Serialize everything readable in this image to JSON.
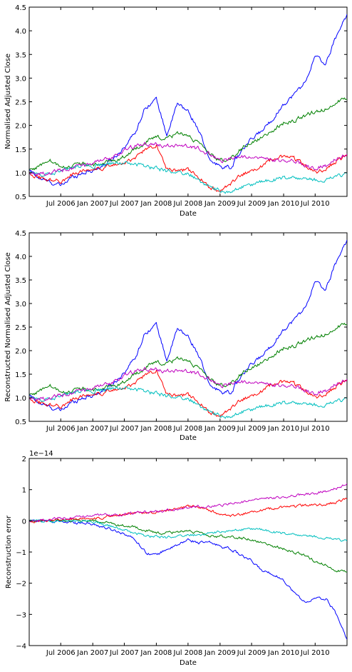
{
  "x_ticks": [
    "Jul 2006",
    "Jan 2007",
    "Jul 2007",
    "Jan 2008",
    "Jul 2008",
    "Jan 2009",
    "Jul 2009",
    "Jan 2010",
    "Jul 2010"
  ],
  "series_colors": [
    "#0000ff",
    "#008000",
    "#ff0000",
    "#00bfbf",
    "#bf00bf"
  ],
  "chart_data": [
    {
      "type": "line",
      "title": "",
      "xlabel": "Date",
      "ylabel": "Normalised Adjusted Close",
      "xlim": [
        "2006-01-01",
        "2010-12-31"
      ],
      "ylim": [
        0.5,
        4.5
      ],
      "yticks": [
        "0.5",
        "1.0",
        "1.5",
        "2.0",
        "2.5",
        "3.0",
        "3.5",
        "4.0",
        "4.5"
      ],
      "grid": false,
      "x": [
        "2006-01-03",
        "2006-03-01",
        "2006-05-01",
        "2006-07-01",
        "2006-09-01",
        "2006-11-01",
        "2007-01-01",
        "2007-03-01",
        "2007-05-01",
        "2007-07-01",
        "2007-09-01",
        "2007-11-01",
        "2008-01-01",
        "2008-03-01",
        "2008-05-01",
        "2008-07-01",
        "2008-09-01",
        "2008-11-01",
        "2009-01-01",
        "2009-03-01",
        "2009-05-01",
        "2009-07-01",
        "2009-09-01",
        "2009-11-01",
        "2010-01-01",
        "2010-03-01",
        "2010-05-01",
        "2010-07-01",
        "2010-09-01",
        "2010-11-01",
        "2010-12-31"
      ],
      "series": [
        {
          "values": [
            1.05,
            0.88,
            0.8,
            0.72,
            0.9,
            1.0,
            1.05,
            1.15,
            1.3,
            1.55,
            1.85,
            2.4,
            2.55,
            1.8,
            2.45,
            2.3,
            1.9,
            1.25,
            1.15,
            1.1,
            1.45,
            1.7,
            1.9,
            2.15,
            2.45,
            2.65,
            2.9,
            3.45,
            3.3,
            3.9,
            4.35
          ]
        },
        {
          "values": [
            1.05,
            1.15,
            1.25,
            1.1,
            1.15,
            1.2,
            1.15,
            1.2,
            1.25,
            1.35,
            1.5,
            1.65,
            1.75,
            1.7,
            1.85,
            1.8,
            1.6,
            1.4,
            1.25,
            1.3,
            1.5,
            1.65,
            1.75,
            1.9,
            2.05,
            2.1,
            2.2,
            2.3,
            2.35,
            2.5,
            2.55
          ]
        },
        {
          "values": [
            1.0,
            0.9,
            0.85,
            0.82,
            0.95,
            1.05,
            1.1,
            1.1,
            1.15,
            1.2,
            1.3,
            1.5,
            1.6,
            1.1,
            1.05,
            1.05,
            0.9,
            0.7,
            0.6,
            0.75,
            0.95,
            1.05,
            1.15,
            1.3,
            1.35,
            1.3,
            1.15,
            1.0,
            1.1,
            1.25,
            1.35
          ]
        },
        {
          "values": [
            1.0,
            0.95,
            1.0,
            1.05,
            1.1,
            1.15,
            1.15,
            1.18,
            1.2,
            1.2,
            1.18,
            1.12,
            1.1,
            1.02,
            1.0,
            0.98,
            0.85,
            0.7,
            0.62,
            0.6,
            0.68,
            0.75,
            0.8,
            0.85,
            0.9,
            0.88,
            0.85,
            0.85,
            0.85,
            0.92,
            0.98
          ]
        },
        {
          "values": [
            1.0,
            0.98,
            1.0,
            1.05,
            1.1,
            1.15,
            1.18,
            1.25,
            1.35,
            1.5,
            1.55,
            1.6,
            1.6,
            1.55,
            1.6,
            1.55,
            1.5,
            1.4,
            1.25,
            1.3,
            1.35,
            1.3,
            1.3,
            1.25,
            1.25,
            1.25,
            1.15,
            1.1,
            1.15,
            1.3,
            1.4
          ]
        }
      ]
    },
    {
      "type": "line",
      "title": "",
      "xlabel": "Date",
      "ylabel": "Reconstructed Normalised Adjusted Close",
      "xlim": [
        "2006-01-01",
        "2010-12-31"
      ],
      "ylim": [
        0.5,
        4.5
      ],
      "yticks": [
        "0.5",
        "1.0",
        "1.5",
        "2.0",
        "2.5",
        "3.0",
        "3.5",
        "4.0",
        "4.5"
      ],
      "grid": false,
      "x": [
        "2006-01-03",
        "2006-03-01",
        "2006-05-01",
        "2006-07-01",
        "2006-09-01",
        "2006-11-01",
        "2007-01-01",
        "2007-03-01",
        "2007-05-01",
        "2007-07-01",
        "2007-09-01",
        "2007-11-01",
        "2008-01-01",
        "2008-03-01",
        "2008-05-01",
        "2008-07-01",
        "2008-09-01",
        "2008-11-01",
        "2009-01-01",
        "2009-03-01",
        "2009-05-01",
        "2009-07-01",
        "2009-09-01",
        "2009-11-01",
        "2010-01-01",
        "2010-03-01",
        "2010-05-01",
        "2010-07-01",
        "2010-09-01",
        "2010-11-01",
        "2010-12-31"
      ],
      "series": [
        {
          "values": [
            1.05,
            0.88,
            0.8,
            0.72,
            0.9,
            1.0,
            1.05,
            1.15,
            1.3,
            1.55,
            1.85,
            2.4,
            2.55,
            1.8,
            2.45,
            2.3,
            1.9,
            1.25,
            1.15,
            1.1,
            1.45,
            1.7,
            1.9,
            2.15,
            2.45,
            2.65,
            2.9,
            3.45,
            3.3,
            3.9,
            4.35
          ]
        },
        {
          "values": [
            1.05,
            1.15,
            1.25,
            1.1,
            1.15,
            1.2,
            1.15,
            1.2,
            1.25,
            1.35,
            1.5,
            1.65,
            1.75,
            1.7,
            1.85,
            1.8,
            1.6,
            1.4,
            1.25,
            1.3,
            1.5,
            1.65,
            1.75,
            1.9,
            2.05,
            2.1,
            2.2,
            2.3,
            2.35,
            2.5,
            2.55
          ]
        },
        {
          "values": [
            1.0,
            0.9,
            0.85,
            0.82,
            0.95,
            1.05,
            1.1,
            1.1,
            1.15,
            1.2,
            1.3,
            1.5,
            1.6,
            1.1,
            1.05,
            1.05,
            0.9,
            0.7,
            0.6,
            0.75,
            0.95,
            1.05,
            1.15,
            1.3,
            1.35,
            1.3,
            1.15,
            1.0,
            1.1,
            1.25,
            1.35
          ]
        },
        {
          "values": [
            1.0,
            0.95,
            1.0,
            1.05,
            1.1,
            1.15,
            1.15,
            1.18,
            1.2,
            1.2,
            1.18,
            1.12,
            1.1,
            1.02,
            1.0,
            0.98,
            0.85,
            0.7,
            0.62,
            0.6,
            0.68,
            0.75,
            0.8,
            0.85,
            0.9,
            0.88,
            0.85,
            0.85,
            0.85,
            0.92,
            0.98
          ]
        },
        {
          "values": [
            1.0,
            0.98,
            1.0,
            1.05,
            1.1,
            1.15,
            1.18,
            1.25,
            1.35,
            1.5,
            1.55,
            1.6,
            1.6,
            1.55,
            1.6,
            1.55,
            1.5,
            1.4,
            1.25,
            1.3,
            1.35,
            1.3,
            1.3,
            1.25,
            1.25,
            1.25,
            1.15,
            1.1,
            1.15,
            1.3,
            1.4
          ]
        }
      ]
    },
    {
      "type": "line",
      "title": "",
      "xlabel": "Date",
      "ylabel": "Reconstruction error",
      "scale_label": "1e−14",
      "xlim": [
        "2006-01-01",
        "2010-12-31"
      ],
      "ylim": [
        -4,
        2
      ],
      "yticks": [
        "−4",
        "−3",
        "−2",
        "−1",
        "0",
        "1",
        "2"
      ],
      "grid": false,
      "x": [
        "2006-01-03",
        "2006-03-01",
        "2006-05-01",
        "2006-07-01",
        "2006-09-01",
        "2006-11-01",
        "2007-01-01",
        "2007-03-01",
        "2007-05-01",
        "2007-07-01",
        "2007-09-01",
        "2007-11-01",
        "2008-01-01",
        "2008-03-01",
        "2008-05-01",
        "2008-07-01",
        "2008-09-01",
        "2008-11-01",
        "2009-01-01",
        "2009-03-01",
        "2009-05-01",
        "2009-07-01",
        "2009-09-01",
        "2009-11-01",
        "2010-01-01",
        "2010-03-01",
        "2010-05-01",
        "2010-07-01",
        "2010-09-01",
        "2010-11-01",
        "2010-12-31"
      ],
      "series": [
        {
          "values": [
            0.0,
            0.0,
            -0.01,
            -0.03,
            -0.05,
            -0.05,
            -0.1,
            -0.2,
            -0.3,
            -0.4,
            -0.6,
            -1.0,
            -1.1,
            -0.9,
            -0.8,
            -0.6,
            -0.7,
            -0.7,
            -0.8,
            -0.9,
            -1.1,
            -1.3,
            -1.6,
            -1.7,
            -1.9,
            -2.3,
            -2.6,
            -2.5,
            -2.5,
            -3.0,
            -3.8
          ]
        },
        {
          "values": [
            0.0,
            0.0,
            0.0,
            0.0,
            0.02,
            0.0,
            0.0,
            -0.05,
            -0.1,
            -0.15,
            -0.2,
            -0.3,
            -0.4,
            -0.4,
            -0.35,
            -0.3,
            -0.4,
            -0.5,
            -0.5,
            -0.5,
            -0.55,
            -0.6,
            -0.7,
            -0.8,
            -0.9,
            -1.0,
            -1.1,
            -1.3,
            -1.4,
            -1.6,
            -1.65
          ]
        },
        {
          "values": [
            0.0,
            0.0,
            0.02,
            0.05,
            0.05,
            0.08,
            0.1,
            0.1,
            0.15,
            0.2,
            0.25,
            0.25,
            0.3,
            0.35,
            0.4,
            0.45,
            0.45,
            0.35,
            0.2,
            0.15,
            0.2,
            0.3,
            0.35,
            0.4,
            0.45,
            0.45,
            0.5,
            0.5,
            0.55,
            0.6,
            0.7
          ]
        },
        {
          "values": [
            0.0,
            0.0,
            0.0,
            0.0,
            0.0,
            -0.02,
            0.0,
            -0.1,
            -0.2,
            -0.3,
            -0.4,
            -0.5,
            -0.5,
            -0.55,
            -0.5,
            -0.45,
            -0.45,
            -0.4,
            -0.35,
            -0.3,
            -0.3,
            -0.25,
            -0.3,
            -0.35,
            -0.4,
            -0.45,
            -0.5,
            -0.5,
            -0.55,
            -0.6,
            -0.65
          ]
        },
        {
          "values": [
            0.0,
            0.02,
            0.05,
            0.08,
            0.1,
            0.12,
            0.15,
            0.18,
            0.2,
            0.22,
            0.25,
            0.28,
            0.3,
            0.33,
            0.38,
            0.42,
            0.45,
            0.45,
            0.5,
            0.55,
            0.6,
            0.65,
            0.7,
            0.72,
            0.75,
            0.8,
            0.85,
            0.9,
            0.95,
            1.05,
            1.2
          ]
        }
      ]
    }
  ]
}
